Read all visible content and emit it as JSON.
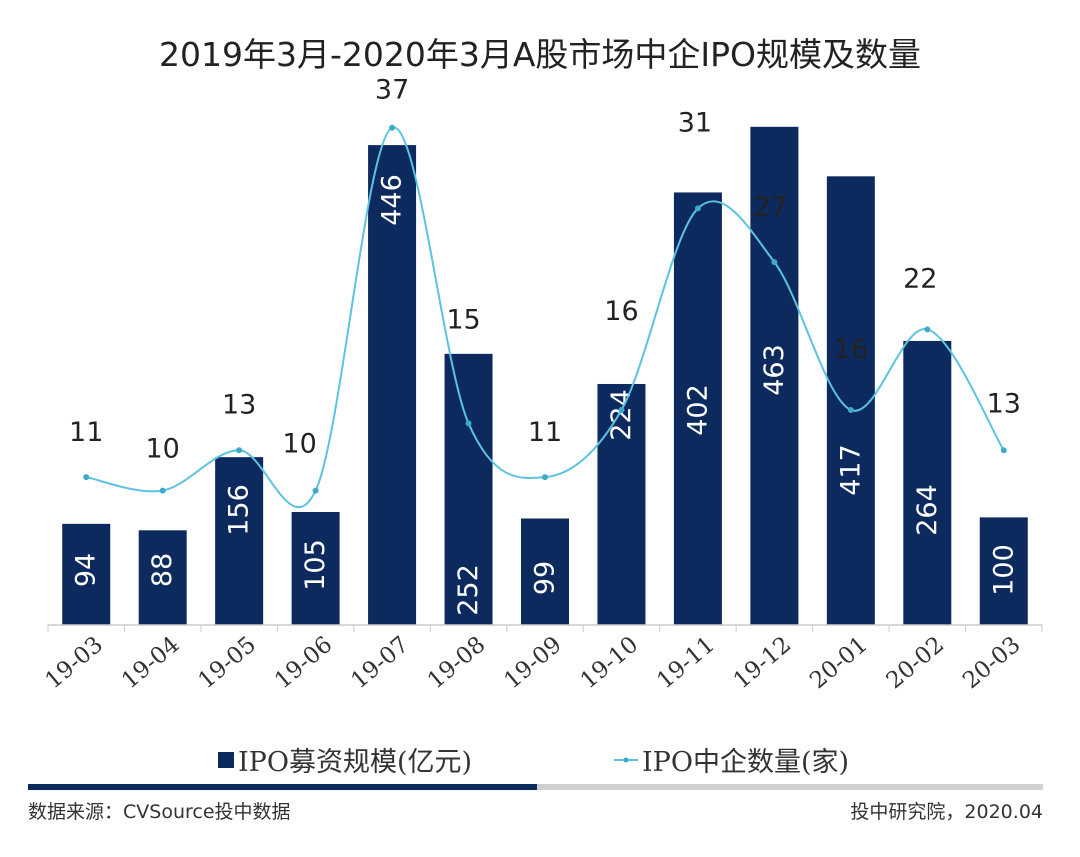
{
  "chart_data": {
    "type": "bar+line",
    "title": "2019年3月-2020年3月A股市场中企IPO规模及数量",
    "categories": [
      "19-03",
      "19-04",
      "19-05",
      "19-06",
      "19-07",
      "19-08",
      "19-09",
      "19-10",
      "19-11",
      "19-12",
      "20-01",
      "20-02",
      "20-03"
    ],
    "series": [
      {
        "name": "IPO募资规模(亿元)",
        "type": "bar",
        "color": "#0d2a5e",
        "values": [
          94,
          88,
          156,
          105,
          446,
          252,
          99,
          224,
          402,
          463,
          417,
          264,
          100
        ]
      },
      {
        "name": "IPO中企数量(家)",
        "type": "line",
        "smooth": true,
        "color": "#5cc3e0",
        "values": [
          11,
          10,
          13,
          10,
          37,
          15,
          11,
          16,
          31,
          27,
          16,
          22,
          13
        ]
      }
    ],
    "grid": false,
    "legend": "bottom"
  },
  "footer": {
    "source": "数据来源：CVSource投中数据",
    "credit": "投中研究院，2020.04"
  },
  "colors": {
    "divider_dark": "#0d2a5e",
    "divider_light": "#d0d0d0"
  }
}
